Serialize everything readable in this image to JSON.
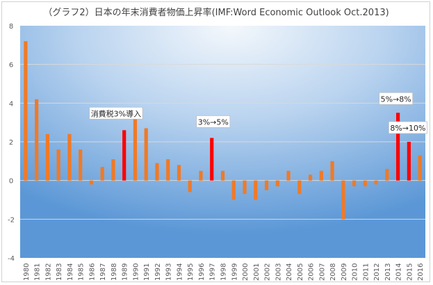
{
  "chart_data": {
    "type": "bar",
    "title": "（グラフ2）日本の年末消費者物価上昇率(IMF:Word Economic Outlook  Oct.2013)",
    "xlabel": "",
    "ylabel": "",
    "ylim": [
      -4,
      8
    ],
    "yticks": [
      "8",
      "6",
      "4",
      "2",
      "0",
      "-2",
      "-4"
    ],
    "ytick_values": [
      8,
      6,
      4,
      2,
      0,
      -2,
      -4
    ],
    "grid": true,
    "categories": [
      "1980",
      "1981",
      "1982",
      "1983",
      "1984",
      "1985",
      "1986",
      "1987",
      "1988",
      "1989",
      "1990",
      "1991",
      "1992",
      "1993",
      "1994",
      "1995",
      "1996",
      "1997",
      "1998",
      "1999",
      "2000",
      "2001",
      "2002",
      "2003",
      "2004",
      "2005",
      "2006",
      "2007",
      "2008",
      "2009",
      "2010",
      "2011",
      "2012",
      "2013",
      "2014",
      "2015",
      "2016"
    ],
    "values": [
      7.2,
      4.2,
      2.4,
      1.6,
      2.4,
      1.6,
      -0.2,
      0.7,
      1.1,
      2.6,
      3.5,
      2.7,
      0.9,
      1.1,
      0.8,
      -0.6,
      0.5,
      2.2,
      0.5,
      -1.0,
      -0.7,
      -1.0,
      -0.5,
      -0.3,
      0.5,
      -0.7,
      0.3,
      0.5,
      1.0,
      -2.0,
      -0.3,
      -0.3,
      -0.2,
      0.6,
      3.5,
      2.0,
      1.3
    ],
    "highlight_years": [
      "1989",
      "1997",
      "2014",
      "2015"
    ],
    "colors": {
      "normal": "#f07a26",
      "highlight": "#ff0000"
    },
    "annotations": [
      {
        "year": "1989",
        "text": "消費税3%導入"
      },
      {
        "year": "1997",
        "text": "3%→5%"
      },
      {
        "year": "2014",
        "text": "5%→8%"
      },
      {
        "year": "2015",
        "text": "8%→10%"
      }
    ]
  }
}
